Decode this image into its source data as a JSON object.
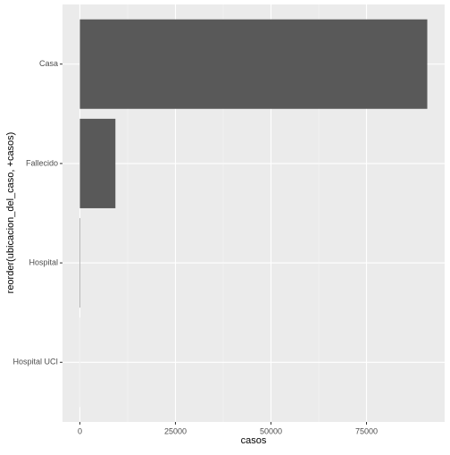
{
  "chart_data": {
    "type": "bar",
    "orientation": "horizontal",
    "categories": [
      "Casa",
      "Fallecido",
      "Hospital",
      "Hospital UCI"
    ],
    "values": [
      90900,
      9300,
      100,
      20
    ],
    "color": "#595959",
    "xlabel": "casos",
    "ylabel": "reorder(ubicacion_del_caso, +casos)",
    "xlim": [
      -4545,
      95445
    ],
    "xticks": [
      0,
      25000,
      50000,
      75000
    ],
    "grid": true
  }
}
